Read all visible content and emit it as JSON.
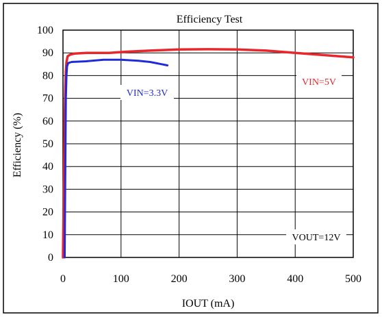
{
  "chart_data": {
    "type": "line",
    "title": "Efficiency Test",
    "xlabel": "IOUT (mA)",
    "ylabel": "Efficiency (%)",
    "xlim": [
      0,
      500
    ],
    "ylim": [
      0,
      100
    ],
    "x_ticks": [
      "0",
      "100",
      "200",
      "300",
      "400",
      "500"
    ],
    "y_ticks": [
      "0",
      "10",
      "20",
      "30",
      "40",
      "50",
      "60",
      "70",
      "80",
      "90",
      "100"
    ],
    "grid": true,
    "series": [
      {
        "name": "VIN=5V",
        "color": "#e8262b",
        "points": [
          [
            0,
            0
          ],
          [
            2,
            40
          ],
          [
            3,
            60
          ],
          [
            4,
            75
          ],
          [
            5,
            82
          ],
          [
            6,
            86
          ],
          [
            8,
            88.5
          ],
          [
            12,
            89.2
          ],
          [
            20,
            89.7
          ],
          [
            40,
            90
          ],
          [
            80,
            90
          ],
          [
            110,
            90.5
          ],
          [
            150,
            91
          ],
          [
            200,
            91.5
          ],
          [
            250,
            91.6
          ],
          [
            300,
            91.5
          ],
          [
            350,
            91
          ],
          [
            400,
            90
          ],
          [
            450,
            89
          ],
          [
            500,
            88
          ]
        ]
      },
      {
        "name": "VIN=3.3V",
        "color": "#1f2bd8",
        "points": [
          [
            3,
            0
          ],
          [
            4,
            40
          ],
          [
            5,
            70
          ],
          [
            6,
            80
          ],
          [
            7,
            84
          ],
          [
            9,
            85.5
          ],
          [
            15,
            86
          ],
          [
            40,
            86.3
          ],
          [
            70,
            87
          ],
          [
            100,
            87
          ],
          [
            130,
            86.5
          ],
          [
            150,
            86
          ],
          [
            160,
            85.5
          ],
          [
            170,
            85
          ],
          [
            180,
            84.5
          ]
        ]
      }
    ],
    "annotations": [
      {
        "id": "vin5",
        "text": "VIN=5V",
        "color": "#e8262b"
      },
      {
        "id": "vin33",
        "text": "VIN=3.3V",
        "color": "#1f2bd8"
      },
      {
        "id": "vout",
        "text": "VOUT=12V",
        "color": "#000000"
      }
    ]
  }
}
